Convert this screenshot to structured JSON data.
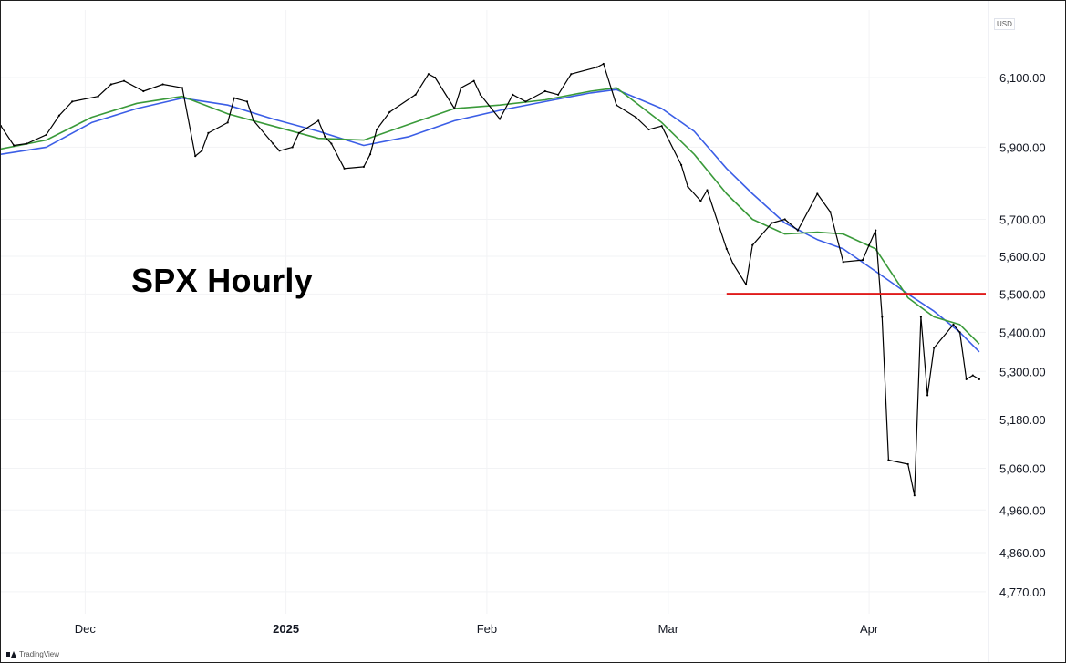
{
  "chart_data": {
    "type": "line",
    "title": "SPX Hourly",
    "currency": "USD",
    "y_scale": "log",
    "ylim": [
      4720,
      6300
    ],
    "y_ticks": [
      "6,100.00",
      "5,900.00",
      "5,700.00",
      "5,600.00",
      "5,500.00",
      "5,400.00",
      "5,300.00",
      "5,180.00",
      "5,060.00",
      "4,960.00",
      "4,860.00",
      "4,770.00"
    ],
    "x_range": [
      "2024-11-18",
      "2025-04-19"
    ],
    "x_ticks": [
      {
        "label": "Dec",
        "date": "2024-12-01",
        "bold": false
      },
      {
        "label": "2025",
        "date": "2025-01-01",
        "bold": true
      },
      {
        "label": "Feb",
        "date": "2025-02-01",
        "bold": false
      },
      {
        "label": "Mar",
        "date": "2025-03-01",
        "bold": false
      },
      {
        "label": "Apr",
        "date": "2025-04-01",
        "bold": false
      }
    ],
    "horizontal_line": {
      "value": 5500,
      "from": "2025-03-10",
      "to": "2025-04-19",
      "color": "#e01b1b"
    },
    "series": [
      {
        "kind": "price",
        "color": "#000000",
        "points": [
          [
            "2024-11-18",
            5960
          ],
          [
            "2024-11-20",
            5905
          ],
          [
            "2024-11-22",
            5910
          ],
          [
            "2024-11-25",
            5935
          ],
          [
            "2024-11-27",
            5990
          ],
          [
            "2024-11-29",
            6030
          ],
          [
            "2024-12-03",
            6045
          ],
          [
            "2024-12-05",
            6080
          ],
          [
            "2024-12-07",
            6090
          ],
          [
            "2024-12-10",
            6060
          ],
          [
            "2024-12-13",
            6080
          ],
          [
            "2024-12-16",
            6070
          ],
          [
            "2024-12-18",
            5875
          ],
          [
            "2024-12-19",
            5890
          ],
          [
            "2024-12-20",
            5940
          ],
          [
            "2024-12-23",
            5970
          ],
          [
            "2024-12-24",
            6040
          ],
          [
            "2024-12-26",
            6030
          ],
          [
            "2024-12-27",
            5975
          ],
          [
            "2024-12-30",
            5910
          ],
          [
            "2024-12-31",
            5890
          ],
          [
            "2025-01-02",
            5900
          ],
          [
            "2025-01-03",
            5940
          ],
          [
            "2025-01-06",
            5975
          ],
          [
            "2025-01-07",
            5930
          ],
          [
            "2025-01-08",
            5910
          ],
          [
            "2025-01-10",
            5840
          ],
          [
            "2025-01-13",
            5845
          ],
          [
            "2025-01-14",
            5880
          ],
          [
            "2025-01-15",
            5950
          ],
          [
            "2025-01-17",
            6000
          ],
          [
            "2025-01-21",
            6050
          ],
          [
            "2025-01-23",
            6110
          ],
          [
            "2025-01-24",
            6100
          ],
          [
            "2025-01-27",
            6010
          ],
          [
            "2025-01-28",
            6070
          ],
          [
            "2025-01-30",
            6090
          ],
          [
            "2025-01-31",
            6050
          ],
          [
            "2025-02-03",
            5980
          ],
          [
            "2025-02-05",
            6050
          ],
          [
            "2025-02-07",
            6030
          ],
          [
            "2025-02-10",
            6060
          ],
          [
            "2025-02-12",
            6050
          ],
          [
            "2025-02-14",
            6110
          ],
          [
            "2025-02-18",
            6130
          ],
          [
            "2025-02-19",
            6140
          ],
          [
            "2025-02-21",
            6020
          ],
          [
            "2025-02-24",
            5985
          ],
          [
            "2025-02-26",
            5950
          ],
          [
            "2025-02-28",
            5960
          ],
          [
            "2025-03-03",
            5850
          ],
          [
            "2025-03-04",
            5790
          ],
          [
            "2025-03-06",
            5750
          ],
          [
            "2025-03-07",
            5780
          ],
          [
            "2025-03-10",
            5620
          ],
          [
            "2025-03-11",
            5580
          ],
          [
            "2025-03-13",
            5525
          ],
          [
            "2025-03-14",
            5630
          ],
          [
            "2025-03-17",
            5690
          ],
          [
            "2025-03-19",
            5700
          ],
          [
            "2025-03-21",
            5670
          ],
          [
            "2025-03-24",
            5770
          ],
          [
            "2025-03-26",
            5720
          ],
          [
            "2025-03-28",
            5585
          ],
          [
            "2025-03-31",
            5590
          ],
          [
            "2025-04-01",
            5630
          ],
          [
            "2025-04-02",
            5670
          ],
          [
            "2025-04-03",
            5440
          ],
          [
            "2025-04-04",
            5080
          ],
          [
            "2025-04-07",
            5070
          ],
          [
            "2025-04-08",
            4995
          ],
          [
            "2025-04-09",
            5440
          ],
          [
            "2025-04-10",
            5240
          ],
          [
            "2025-04-11",
            5360
          ],
          [
            "2025-04-14",
            5420
          ],
          [
            "2025-04-15",
            5400
          ],
          [
            "2025-04-16",
            5280
          ],
          [
            "2025-04-17",
            5290
          ],
          [
            "2025-04-18",
            5280
          ]
        ]
      },
      {
        "kind": "moving_average",
        "color": "#3b5ee6",
        "points": [
          [
            "2024-11-18",
            5880
          ],
          [
            "2024-11-25",
            5900
          ],
          [
            "2024-12-02",
            5970
          ],
          [
            "2024-12-09",
            6010
          ],
          [
            "2024-12-16",
            6040
          ],
          [
            "2024-12-23",
            6020
          ],
          [
            "2024-12-30",
            5980
          ],
          [
            "2025-01-06",
            5945
          ],
          [
            "2025-01-13",
            5905
          ],
          [
            "2025-01-20",
            5930
          ],
          [
            "2025-01-27",
            5975
          ],
          [
            "2025-02-03",
            6005
          ],
          [
            "2025-02-10",
            6030
          ],
          [
            "2025-02-17",
            6055
          ],
          [
            "2025-02-21",
            6065
          ],
          [
            "2025-02-28",
            6010
          ],
          [
            "2025-03-05",
            5945
          ],
          [
            "2025-03-10",
            5840
          ],
          [
            "2025-03-14",
            5770
          ],
          [
            "2025-03-19",
            5690
          ],
          [
            "2025-03-24",
            5645
          ],
          [
            "2025-03-28",
            5620
          ],
          [
            "2025-04-02",
            5560
          ],
          [
            "2025-04-07",
            5500
          ],
          [
            "2025-04-11",
            5455
          ],
          [
            "2025-04-15",
            5400
          ],
          [
            "2025-04-18",
            5350
          ]
        ]
      },
      {
        "kind": "moving_average",
        "color": "#3a9a3a",
        "points": [
          [
            "2024-11-18",
            5895
          ],
          [
            "2024-11-25",
            5920
          ],
          [
            "2024-12-02",
            5985
          ],
          [
            "2024-12-09",
            6025
          ],
          [
            "2024-12-16",
            6045
          ],
          [
            "2024-12-23",
            5995
          ],
          [
            "2024-12-30",
            5960
          ],
          [
            "2025-01-06",
            5925
          ],
          [
            "2025-01-13",
            5920
          ],
          [
            "2025-01-20",
            5965
          ],
          [
            "2025-01-27",
            6010
          ],
          [
            "2025-02-03",
            6020
          ],
          [
            "2025-02-10",
            6035
          ],
          [
            "2025-02-17",
            6060
          ],
          [
            "2025-02-21",
            6070
          ],
          [
            "2025-02-28",
            5970
          ],
          [
            "2025-03-05",
            5880
          ],
          [
            "2025-03-10",
            5770
          ],
          [
            "2025-03-14",
            5700
          ],
          [
            "2025-03-19",
            5660
          ],
          [
            "2025-03-24",
            5665
          ],
          [
            "2025-03-28",
            5660
          ],
          [
            "2025-04-02",
            5620
          ],
          [
            "2025-04-07",
            5490
          ],
          [
            "2025-04-11",
            5440
          ],
          [
            "2025-04-15",
            5420
          ],
          [
            "2025-04-18",
            5370
          ]
        ]
      }
    ]
  },
  "watermark": "TradingView"
}
